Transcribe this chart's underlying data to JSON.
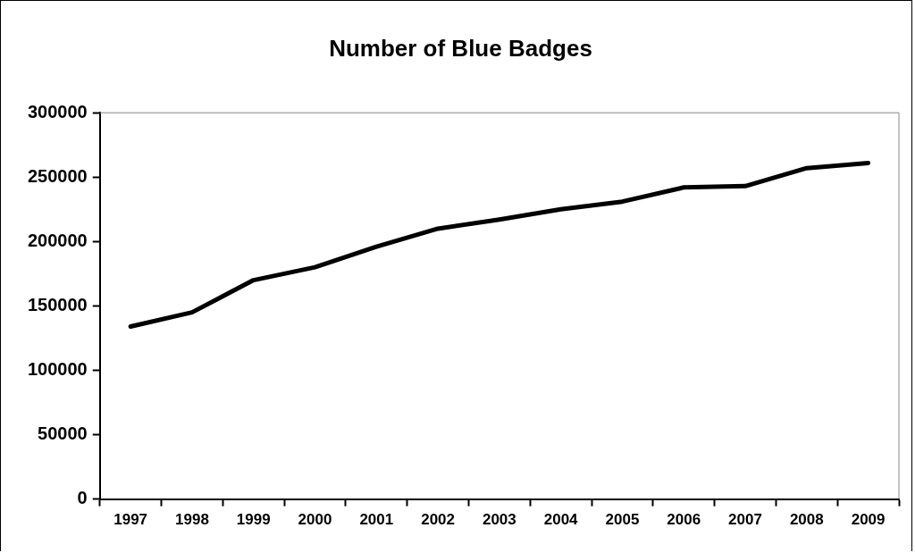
{
  "chart_data": {
    "type": "line",
    "title": "Number of Blue Badges",
    "categories": [
      "1997",
      "1998",
      "1999",
      "2000",
      "2001",
      "2002",
      "2003",
      "2004",
      "2005",
      "2006",
      "2007",
      "2008",
      "2009"
    ],
    "series": [
      {
        "color": "#000000",
        "values": [
          134000,
          145000,
          170000,
          180000,
          196000,
          210000,
          217000,
          225000,
          231000,
          242000,
          243000,
          257000,
          261000
        ]
      }
    ],
    "ylim": [
      0,
      300000
    ],
    "yticks": [
      0,
      50000,
      100000,
      150000,
      200000,
      250000,
      300000
    ],
    "grid": false,
    "legend": false,
    "marker": "none",
    "line_style": "solid"
  }
}
